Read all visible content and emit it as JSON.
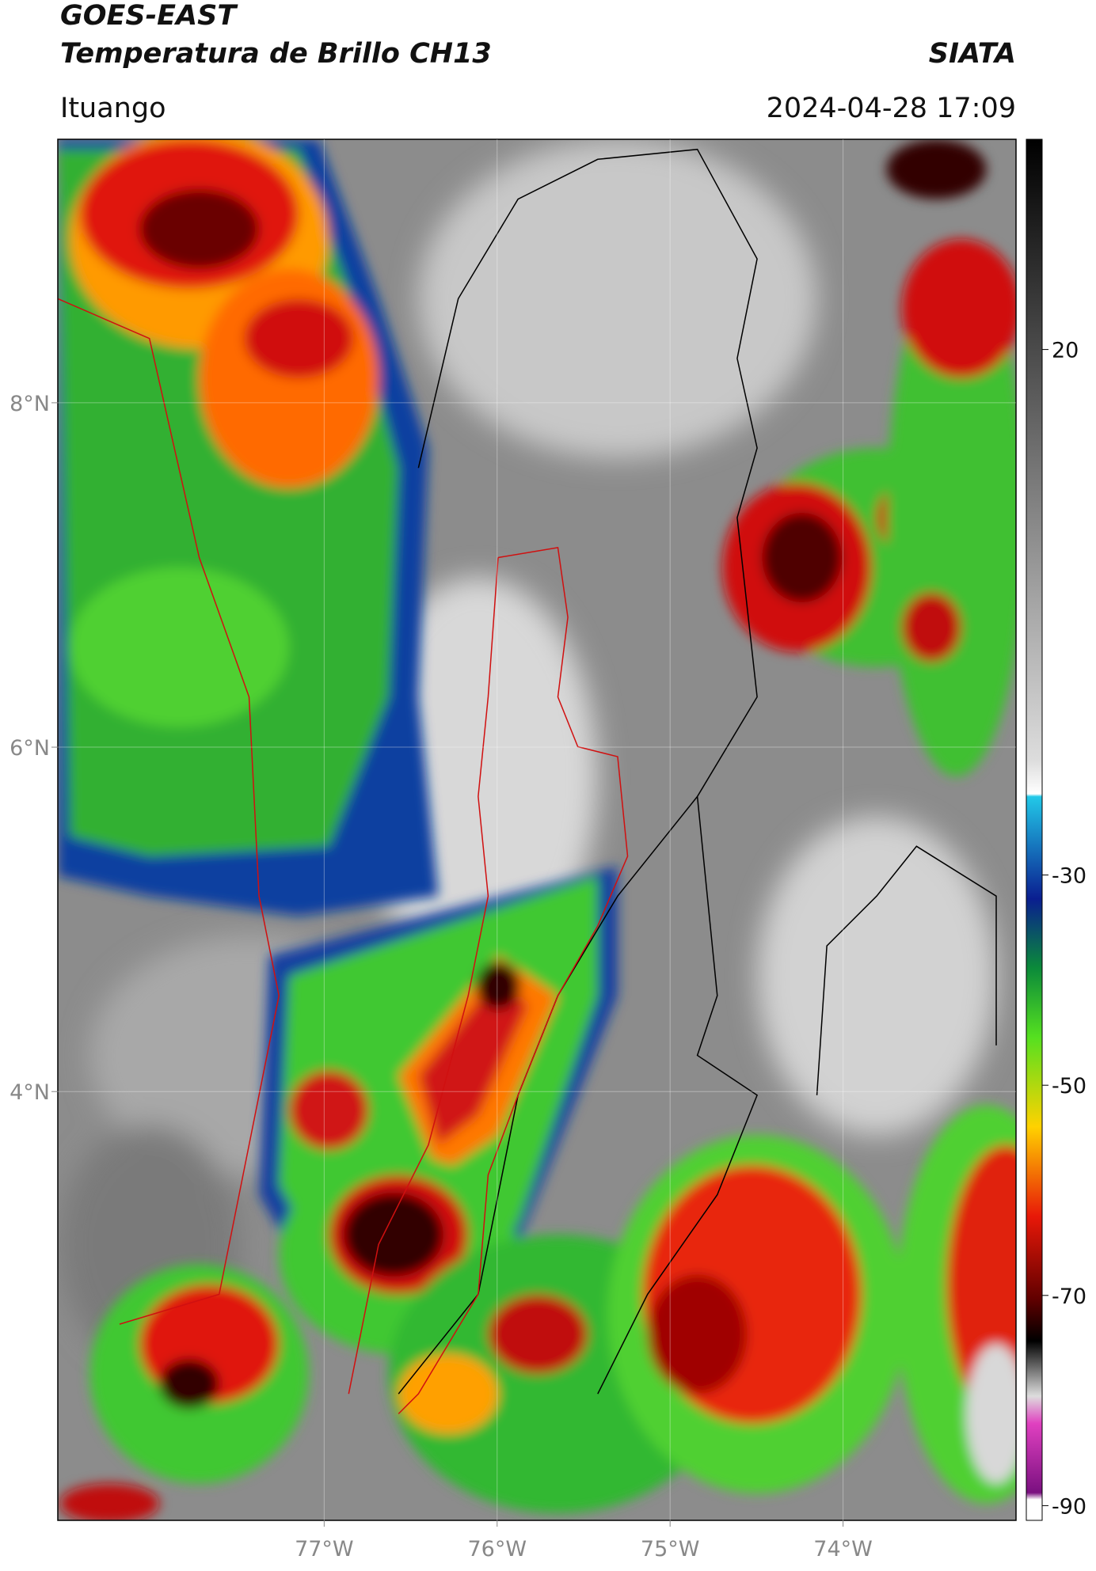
{
  "header": {
    "title": "GOES-EAST",
    "subtitle": "Temperatura de Brillo CH13",
    "source": "SIATA",
    "location": "Ituango",
    "datetime": "2024-04-28 17:09"
  },
  "map": {
    "xlim": [
      -78.54,
      -73.0
    ],
    "ylim": [
      1.51,
      9.53
    ],
    "xticks": [
      {
        "value": -77,
        "label": "77°W"
      },
      {
        "value": -76,
        "label": "76°W"
      },
      {
        "value": -75,
        "label": "75°W"
      },
      {
        "value": -74,
        "label": "74°W"
      }
    ],
    "yticks": [
      {
        "value": 8,
        "label": "8°N"
      },
      {
        "value": 6,
        "label": "6°N"
      },
      {
        "value": 4,
        "label": "4°N"
      }
    ],
    "grid": true
  },
  "colorbar": {
    "ylim": [
      -91.4,
      40
    ],
    "yticks": [
      20,
      -30,
      -50,
      -70,
      -90
    ]
  }
}
